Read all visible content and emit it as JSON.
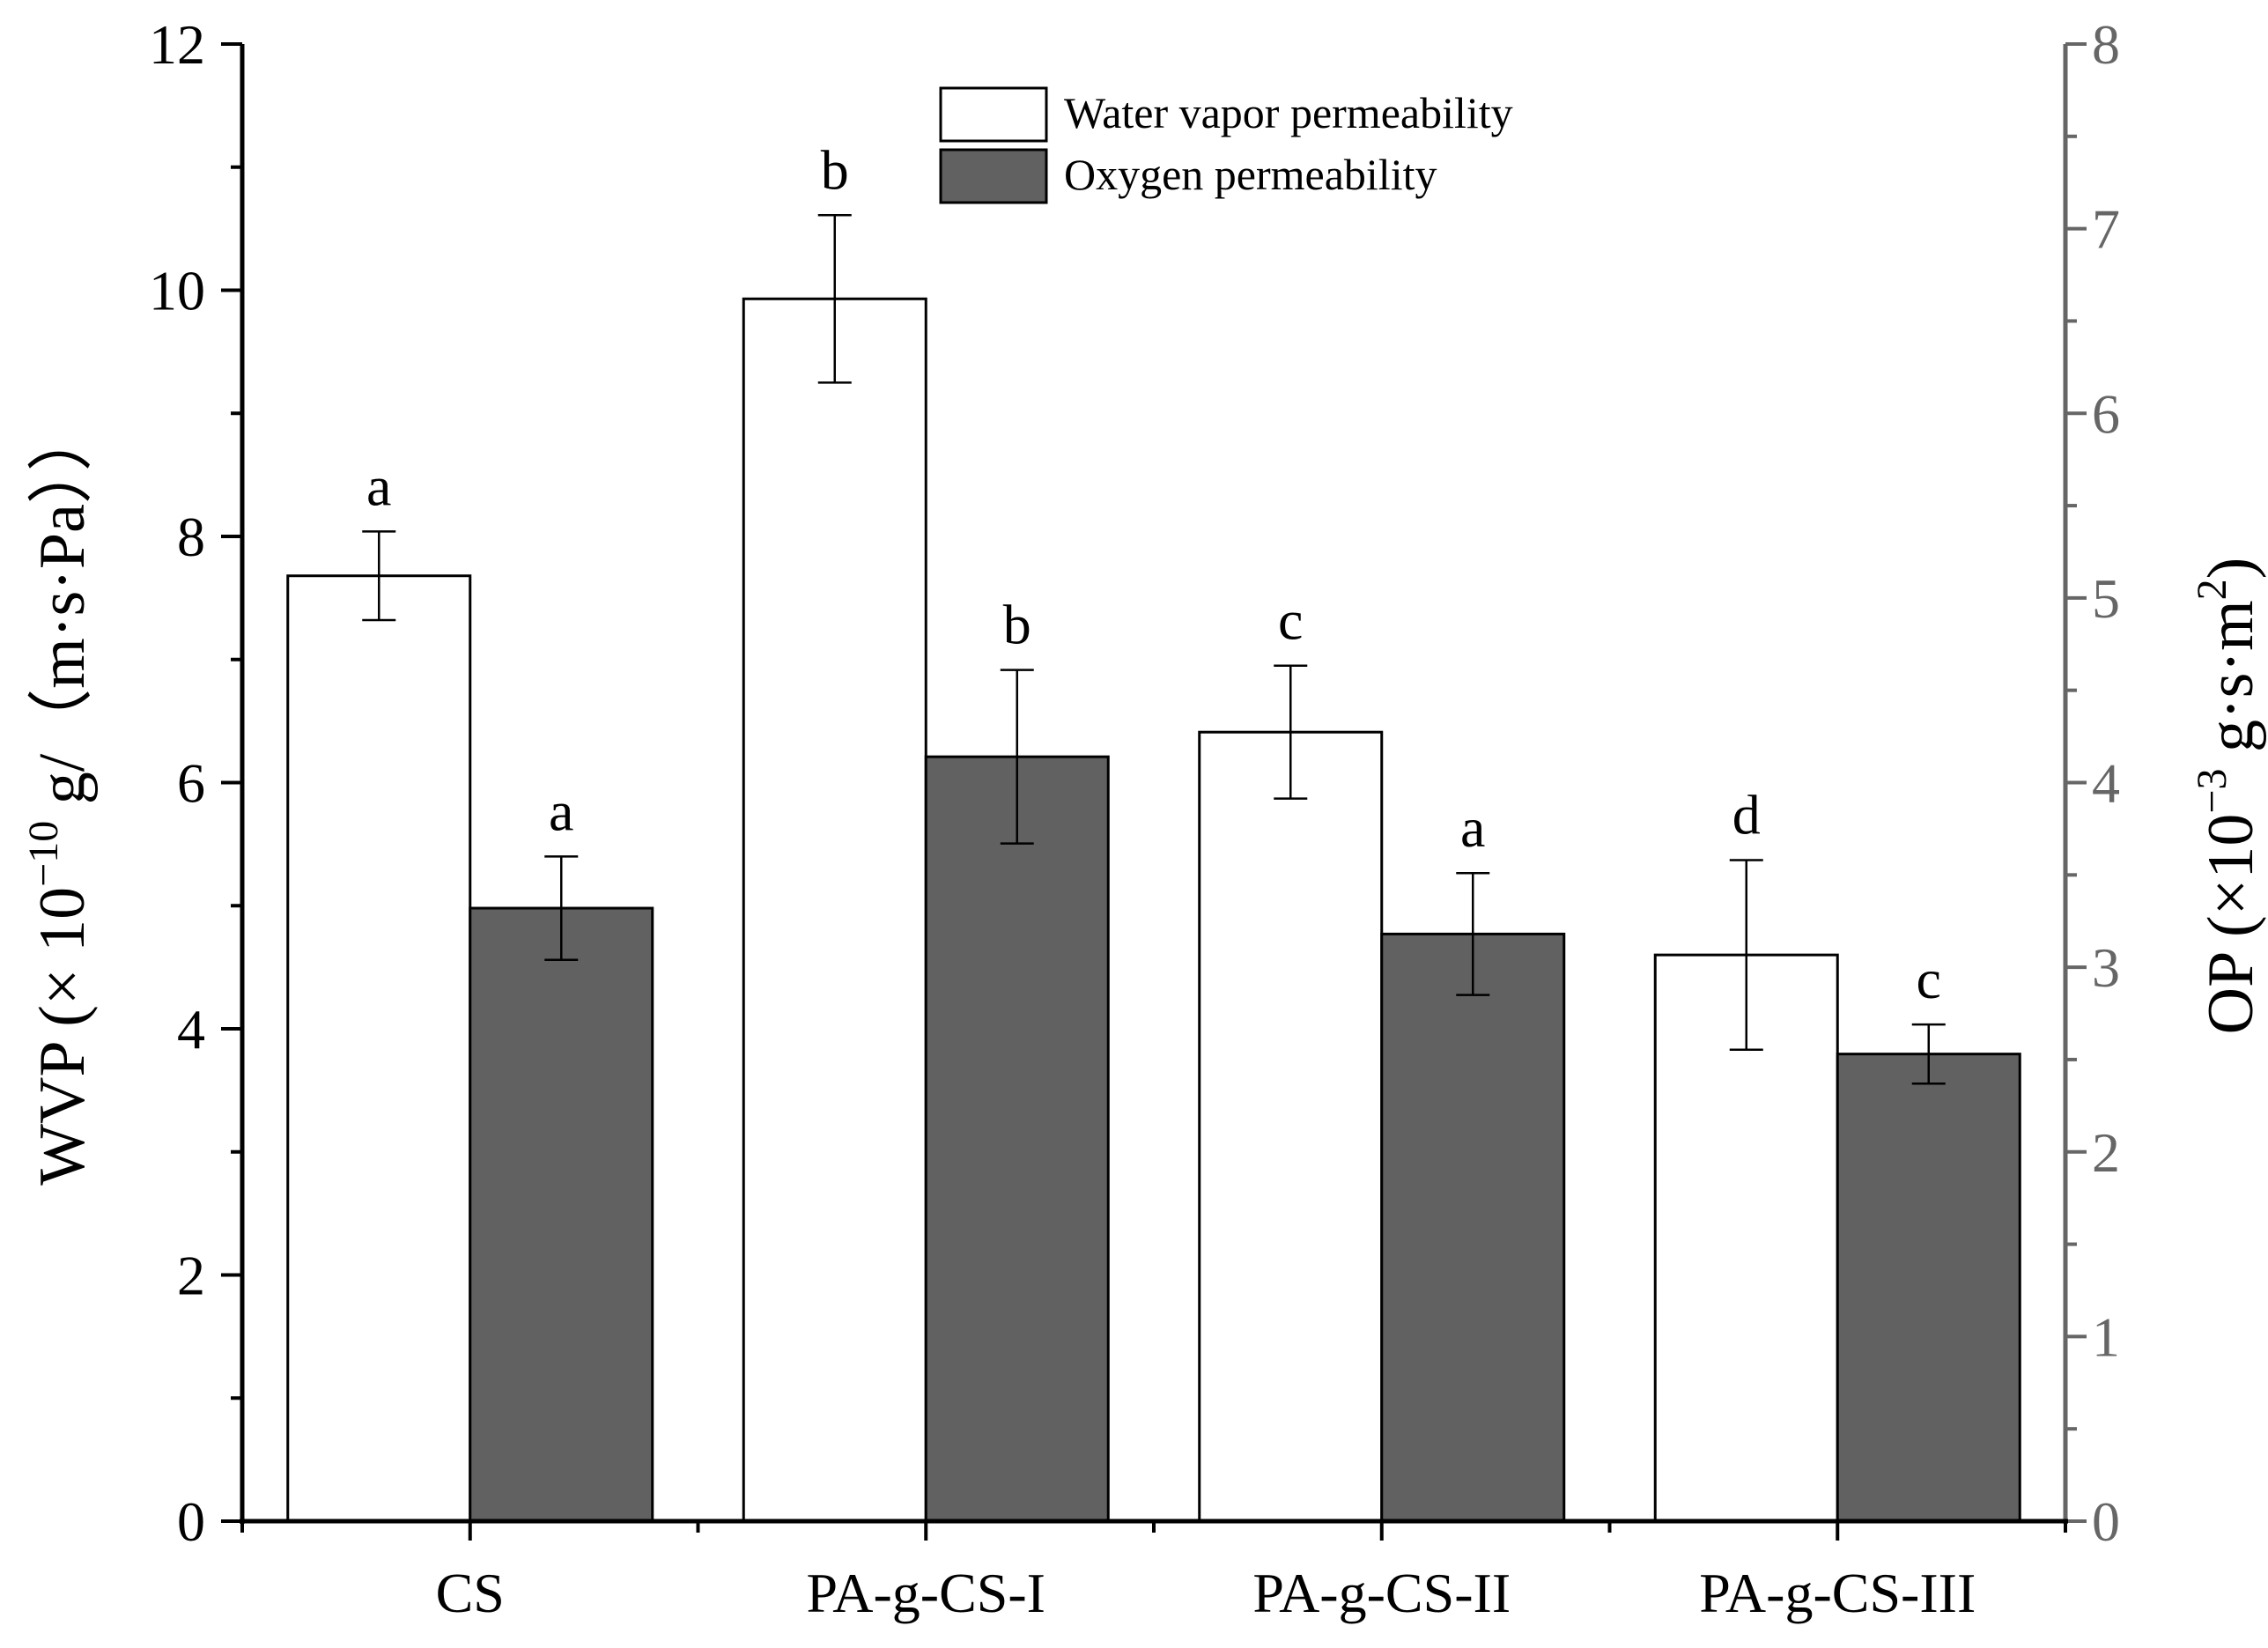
{
  "chart_data": {
    "type": "bar",
    "categories": [
      "CS",
      "PA-g-CS-I",
      "PA-g-CS-II",
      "PA-g-CS-III"
    ],
    "series": [
      {
        "name": "Water vapor permeability",
        "axis": "left",
        "color": "#ffffff",
        "values": [
          7.68,
          9.93,
          6.41,
          4.6
        ],
        "errors": [
          0.36,
          0.68,
          0.54,
          0.77
        ],
        "letters": [
          "a",
          "b",
          "c",
          "d"
        ]
      },
      {
        "name": "Oxygen permeability",
        "axis": "right",
        "color": "#616161",
        "values": [
          3.32,
          4.14,
          3.18,
          2.53
        ],
        "errors": [
          0.28,
          0.47,
          0.33,
          0.16
        ],
        "letters": [
          "a",
          "b",
          "a",
          "c"
        ]
      }
    ],
    "left_axis": {
      "label_prefix": "WVP (× 10",
      "label_exp": "−10",
      "label_suffix": " g/（m·s·Pa））",
      "ylim": [
        0,
        12
      ],
      "ticks": [
        0,
        2,
        4,
        6,
        8,
        10,
        12
      ],
      "color": "#000000"
    },
    "right_axis": {
      "label_prefix": "OP (×10",
      "label_exp": "−3",
      "label_mid": " g·s·m",
      "label_exp2": "2",
      "label_suffix": ")",
      "ylim": [
        0,
        8
      ],
      "ticks": [
        0,
        1,
        2,
        3,
        4,
        5,
        6,
        7,
        8
      ],
      "color": "#666666"
    },
    "legend_position": "top-center",
    "grid": false
  }
}
